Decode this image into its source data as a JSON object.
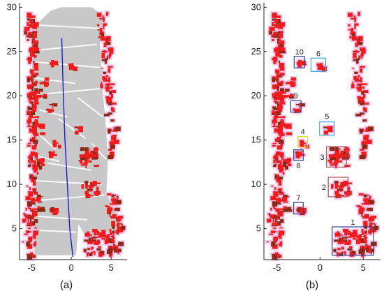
{
  "figure": {
    "labels": {
      "a": "(a)",
      "b": "(b)"
    },
    "colors": {
      "free": "#c8c8c8",
      "obstacle": "#ee1c1c",
      "obstacle_dark": "#8a2a16",
      "halo": "#f2b8e4",
      "path": "#1c1ccc",
      "box_blue": "#2a3f8f",
      "box_cyan": "#3aa7e0",
      "box_yellow": "#e8d23a",
      "box_red": "#b04a4a"
    }
  },
  "chart_data": [
    {
      "type": "scatter",
      "panel": "a",
      "description_axes": "grid map with free space and obstacles, planned path",
      "xlim": [
        -6.5,
        7
      ],
      "ylim": [
        1.5,
        30.5
      ],
      "xticks": [
        -5,
        0,
        5
      ],
      "yticks": [
        5,
        10,
        15,
        20,
        25,
        30
      ],
      "xtick_labels": [
        "-5",
        "0",
        "5"
      ],
      "ytick_labels": [
        "5",
        "10",
        "15",
        "20",
        "25",
        "30"
      ],
      "path": {
        "x": [
          -1.2,
          -1.0,
          -0.8,
          -0.5,
          -0.2,
          0.2
        ],
        "y": [
          26.5,
          20,
          15,
          10,
          5,
          1.8
        ]
      },
      "title": "",
      "xlabel": "",
      "ylabel": ""
    },
    {
      "type": "scatter",
      "panel": "b",
      "xlim": [
        -6.5,
        7
      ],
      "ylim": [
        1.5,
        30.5
      ],
      "xticks": [
        -5,
        0,
        5
      ],
      "yticks": [
        5,
        10,
        15,
        20,
        25,
        30
      ],
      "xtick_labels": [
        "-5",
        "0",
        "5"
      ],
      "ytick_labels": [
        "5",
        "10",
        "15",
        "20",
        "25",
        "30"
      ],
      "detected_objects": [
        {
          "id": "1",
          "x": 3.8,
          "y": 3.6,
          "w": 4.8,
          "h": 3.2,
          "color": "box_blue"
        },
        {
          "id": "2",
          "x": 2.1,
          "y": 9.7,
          "w": 2.3,
          "h": 2.2,
          "color": "box_red"
        },
        {
          "id": "3",
          "x": 1.9,
          "y": 13.1,
          "w": 2.3,
          "h": 2.3,
          "color": "box_red"
        },
        {
          "id": "4",
          "x": -2.0,
          "y": 14.8,
          "w": 1.1,
          "h": 1.2,
          "color": "box_yellow"
        },
        {
          "id": "5",
          "x": 0.8,
          "y": 16.3,
          "w": 1.7,
          "h": 1.5,
          "color": "box_cyan"
        },
        {
          "id": "6",
          "x": -0.2,
          "y": 23.5,
          "w": 1.7,
          "h": 1.5,
          "color": "box_cyan"
        },
        {
          "id": "7",
          "x": -2.5,
          "y": 7.3,
          "w": 1.1,
          "h": 1.3,
          "color": "box_blue"
        },
        {
          "id": "8",
          "x": -2.5,
          "y": 13.3,
          "w": 1.1,
          "h": 1.2,
          "color": "box_blue"
        },
        {
          "id": "9",
          "x": -2.8,
          "y": 18.8,
          "w": 1.2,
          "h": 1.3,
          "color": "box_blue"
        },
        {
          "id": "10",
          "x": -2.4,
          "y": 23.8,
          "w": 1.2,
          "h": 1.3,
          "color": "box_blue"
        }
      ],
      "title": "",
      "xlabel": "",
      "ylabel": ""
    }
  ]
}
